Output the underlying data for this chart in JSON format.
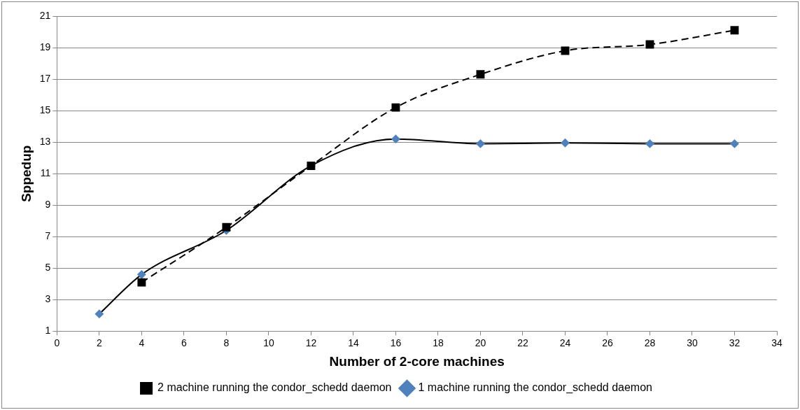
{
  "chart_data": {
    "type": "line",
    "xlabel": "Number of 2-core machines",
    "ylabel": "Sppedup",
    "xlim": [
      0,
      34
    ],
    "xticks": [
      0,
      2,
      4,
      6,
      8,
      10,
      12,
      14,
      16,
      18,
      20,
      22,
      24,
      26,
      28,
      30,
      32,
      34
    ],
    "ylim": [
      1,
      21
    ],
    "yticks": [
      1,
      3,
      5,
      7,
      9,
      11,
      13,
      15,
      17,
      19,
      21
    ],
    "grid": "y",
    "legend": "bottom",
    "series": [
      {
        "name": "1 machine running the condor_schedd daemon",
        "color": "#4f81bd",
        "marker": "diamond",
        "line_style": "solid",
        "x": [
          2,
          4,
          8,
          12,
          16,
          20,
          24,
          28,
          32
        ],
        "values": [
          2.1,
          4.6,
          7.4,
          11.5,
          13.2,
          12.9,
          12.95,
          12.9,
          12.9
        ]
      },
      {
        "name": "2 machine running the condor_schedd daemon",
        "color": "#000000",
        "marker": "square",
        "line_style": "dashed",
        "x": [
          4,
          8,
          12,
          16,
          20,
          24,
          28,
          32
        ],
        "values": [
          4.1,
          7.6,
          11.5,
          15.2,
          17.3,
          18.8,
          19.2,
          20.1
        ]
      }
    ]
  }
}
